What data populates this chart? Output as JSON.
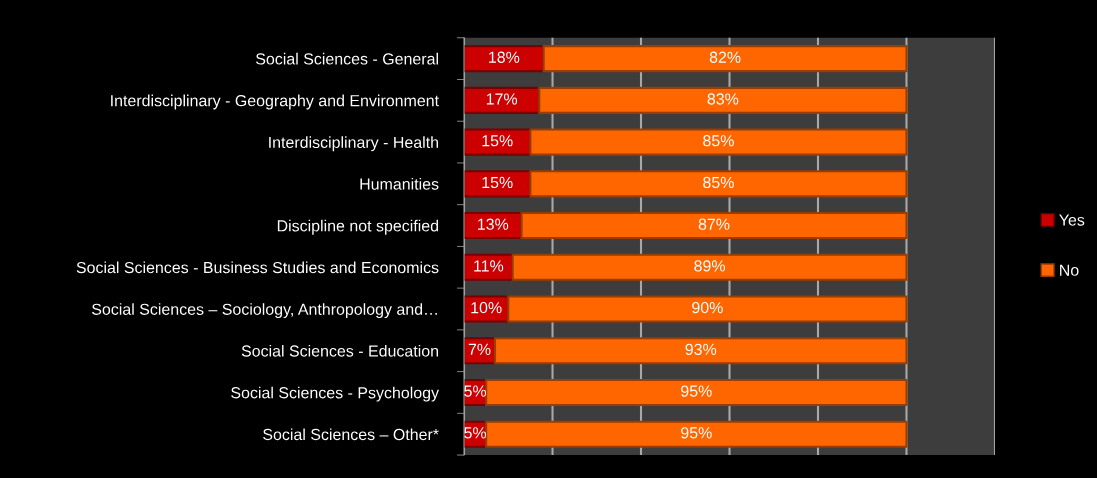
{
  "chart_data": {
    "type": "bar",
    "orientation": "horizontal",
    "stacked": true,
    "categories": [
      "Social Sciences - General",
      "Interdisciplinary - Geography and Environment",
      "Interdisciplinary - Health",
      "Humanities",
      "Discipline not specified",
      "Social Sciences - Business Studies and Economics",
      "Social Sciences – Sociology, Anthropology and…",
      "Social Sciences - Education",
      "Social Sciences - Psychology",
      "Social Sciences – Other*"
    ],
    "series": [
      {
        "name": "Yes",
        "color": "#cc0000",
        "values": [
          18,
          17,
          15,
          15,
          13,
          11,
          10,
          7,
          5,
          5
        ],
        "value_labels": [
          "18%",
          "17%",
          "15%",
          "15%",
          "13%",
          "11%",
          "10%",
          "7%",
          "5%",
          "5%"
        ]
      },
      {
        "name": "No",
        "color": "#ff6600",
        "values": [
          82,
          83,
          85,
          85,
          87,
          89,
          90,
          93,
          95,
          95
        ],
        "value_labels": [
          "82%",
          "83%",
          "85%",
          "85%",
          "87%",
          "89%",
          "90%",
          "93%",
          "95%",
          "95%"
        ]
      }
    ],
    "xlim": [
      0,
      120
    ],
    "xticks": [
      {
        "value": 0,
        "label": null
      },
      {
        "value": 20,
        "label": null
      },
      {
        "value": 40,
        "label": null
      },
      {
        "value": 60,
        "label": null
      },
      {
        "value": 80,
        "label": null
      },
      {
        "value": 100,
        "label": null
      },
      {
        "value": 120,
        "label": null
      }
    ],
    "tick_labels": "y",
    "grid": "x",
    "legend": "right"
  }
}
